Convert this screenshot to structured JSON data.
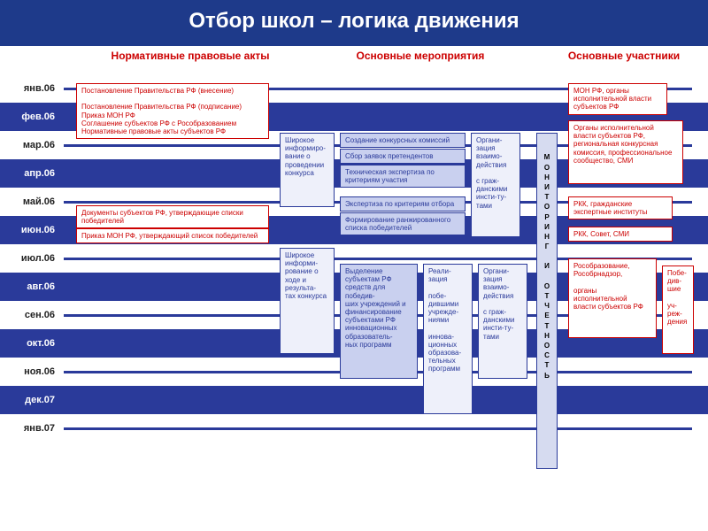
{
  "title": "Отбор школ – логика движения",
  "columns": {
    "c1": "Нормативные правовые акты",
    "c2": "Основные мероприятия",
    "c3": "Основные участники"
  },
  "months": [
    {
      "label": "янв.06",
      "hl": false
    },
    {
      "label": "фев.06",
      "hl": true
    },
    {
      "label": "мар.06",
      "hl": false
    },
    {
      "label": "апр.06",
      "hl": true
    },
    {
      "label": "май.06",
      "hl": false
    },
    {
      "label": "июн.06",
      "hl": true
    },
    {
      "label": "июл.06",
      "hl": false
    },
    {
      "label": "авг.06",
      "hl": true
    },
    {
      "label": "сен.06",
      "hl": false
    },
    {
      "label": "окт.06",
      "hl": true
    },
    {
      "label": "ноя.06",
      "hl": false
    },
    {
      "label": "дек.07",
      "hl": true
    },
    {
      "label": "янв.07",
      "hl": false
    }
  ],
  "boxes": {
    "norm1": "Постановление Правительства РФ (внесение)\n\nПостановление Правительства РФ (подписание)\nПриказ МОН РФ\nСоглашение субъектов РФ с Рособразованием\nНормативные правовые акты субъектов РФ",
    "norm2": "Документы субъектов РФ, утверждающие списки победителей",
    "norm3": "Приказ МОН РФ, утверждающий список победителей",
    "act_inform1": "Широкое информиро-\nвание о проведении конкурса",
    "act_create": "Создание конкурсных комиссий",
    "act_collect": "Сбор заявок претендентов",
    "act_tech": "Техническая экспертиза по критериям участия",
    "act_expert": "Экспертиза по критериям отбора",
    "act_form": "Формирование ранжированного списка победителей",
    "act_org1": "Органи-\nзация взаимо-\nдействия\n\nс граж-\nданскими инсти-ту-\nтами",
    "act_inform2": "Широкое информи-\nрование о ходе и результа-\nтах конкурса",
    "act_alloc": "Выделение субъектам РФ средств для победив-\nших учреждений и финансирование субъектами РФ инновационных образователь-\nных программ",
    "act_real": "Реали-\nзация\n\nпобе-\nдившими учрежде-\nниями\n\nиннова-\nционных образова-\nтельных программ",
    "act_org2": "Органи-\nзация взаимо-\nдействия\n\nс граж-\nданскими инсти-ту-\nтами",
    "monitor": "М\nО\nН\nИ\nТ\nО\nР\nИ\nН\nГ\n\nИ\n\nО\nТ\nЧ\nЕ\nТ\nН\nО\nС\nТ\nЬ",
    "p1": "МОН РФ, органы исполнительной власти субъектов РФ",
    "p2": "Органы исполнительной власти субъектов РФ, региональная конкурсная комиссия, профессиональное сообщество, СМИ",
    "p3": "РКК, гражданские экспертные институты",
    "p4": "РКК, Совет, СМИ",
    "p5": "Рособразование, Рособрнадзор,\n\nорганы исполнительной власти субъектов РФ",
    "p6": "Побе-\nдив-\nшие\n\nуч-\nреж-\nдения"
  },
  "colors": {
    "title_bg": "#1e3a8a",
    "row_hl": "#2a3a9a",
    "red": "#c00",
    "blue_border": "#2a3a9a",
    "blue_fill": "#c9d0ef"
  }
}
